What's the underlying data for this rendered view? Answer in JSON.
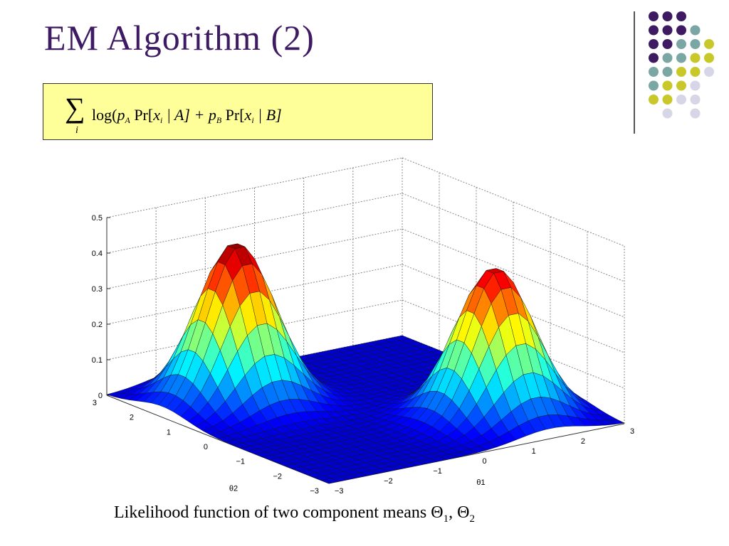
{
  "slide": {
    "title": "EM Algorithm (2)",
    "caption_main": "Likelihood function of two component means ",
    "caption_theta": "Θ",
    "caption_sub1": "1",
    "caption_sep": ", ",
    "caption_sub2": "2"
  },
  "formula": {
    "sum_symbol": "∑",
    "sum_index": "i",
    "part1": "log(",
    "p": "p",
    "sub_A": "A",
    "pr": " Pr[",
    "x": "x",
    "sub_i": "i",
    "given_A": " | A] + ",
    "sub_B": "B",
    "given_B": " | B]"
  },
  "colors": {
    "title": "#3d1a62",
    "formula_bg": "#ffff99",
    "dot_purple": "#3d1a62",
    "dot_teal": "#7aa6a3",
    "dot_yellow": "#c9c82a",
    "dot_lavender": "#d6d6e6"
  },
  "chart_data": {
    "type": "surface",
    "xlabel": "θ1",
    "ylabel": "θ2",
    "zlim": [
      0,
      0.5
    ],
    "xlim": [
      -3,
      3
    ],
    "ylim": [
      -3,
      3
    ],
    "z_ticks": [
      "0",
      "0.1",
      "0.2",
      "0.3",
      "0.4",
      "0.5"
    ],
    "y_ticks": [
      "3",
      "2",
      "1",
      "0",
      "−1",
      "−2",
      "−3"
    ],
    "x_ticks": [
      "−3",
      "−2",
      "−1",
      "0",
      "1",
      "2",
      "3"
    ],
    "peaks": [
      {
        "theta1": -1.5,
        "theta2": 1.5,
        "height": 0.45
      },
      {
        "theta1": 1.5,
        "theta2": -1.5,
        "height": 0.42
      }
    ],
    "grid": true
  }
}
